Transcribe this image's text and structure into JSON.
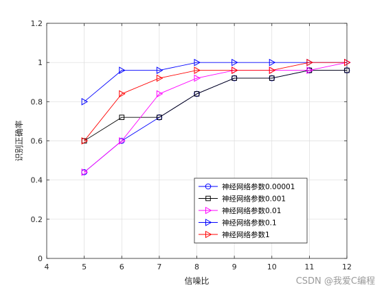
{
  "watermark": "CSDN @我爱C编程",
  "chart_data": {
    "type": "line",
    "xlabel": "信噪比",
    "ylabel": "识别正确率",
    "xlim": [
      4,
      12
    ],
    "ylim": [
      0,
      1.2
    ],
    "xticks": [
      4,
      5,
      6,
      7,
      8,
      9,
      10,
      11,
      12
    ],
    "yticks": [
      0,
      0.2,
      0.4,
      0.6,
      0.8,
      1,
      1.2
    ],
    "xtick_labels": [
      "4",
      "5",
      "6",
      "7",
      "8",
      "9",
      "10",
      "11",
      "12"
    ],
    "ytick_labels": [
      "0",
      "0.2",
      "0.4",
      "0.6",
      "0.8",
      "1",
      "1.2"
    ],
    "grid": true,
    "legend_position": "lower-right",
    "x": [
      5,
      6,
      7,
      8,
      9,
      10,
      11,
      12
    ],
    "series": [
      {
        "name": "神经网络参数0.00001",
        "color": "#0000ff",
        "marker": "circle",
        "values": [
          0.44,
          0.6,
          0.72,
          0.84,
          0.92,
          0.92,
          0.96,
          0.96
        ]
      },
      {
        "name": "神经网络参数0.001",
        "color": "#000000",
        "marker": "square",
        "values": [
          0.6,
          0.72,
          0.72,
          0.84,
          0.92,
          0.92,
          0.96,
          0.96
        ]
      },
      {
        "name": "神经网络参数0.01",
        "color": "#ff00ff",
        "marker": "triangle-right",
        "values": [
          0.44,
          0.6,
          0.84,
          0.92,
          0.96,
          0.96,
          0.96,
          1.0
        ]
      },
      {
        "name": "神经网络参数0.1",
        "color": "#0000ff",
        "marker": "triangle-right",
        "values": [
          0.8,
          0.96,
          0.96,
          1.0,
          1.0,
          1.0,
          1.0,
          1.0
        ]
      },
      {
        "name": "神经网络参数1",
        "color": "#ff0000",
        "marker": "triangle-right",
        "values": [
          0.6,
          0.84,
          0.92,
          0.96,
          0.96,
          0.96,
          1.0,
          1.0
        ]
      }
    ]
  }
}
